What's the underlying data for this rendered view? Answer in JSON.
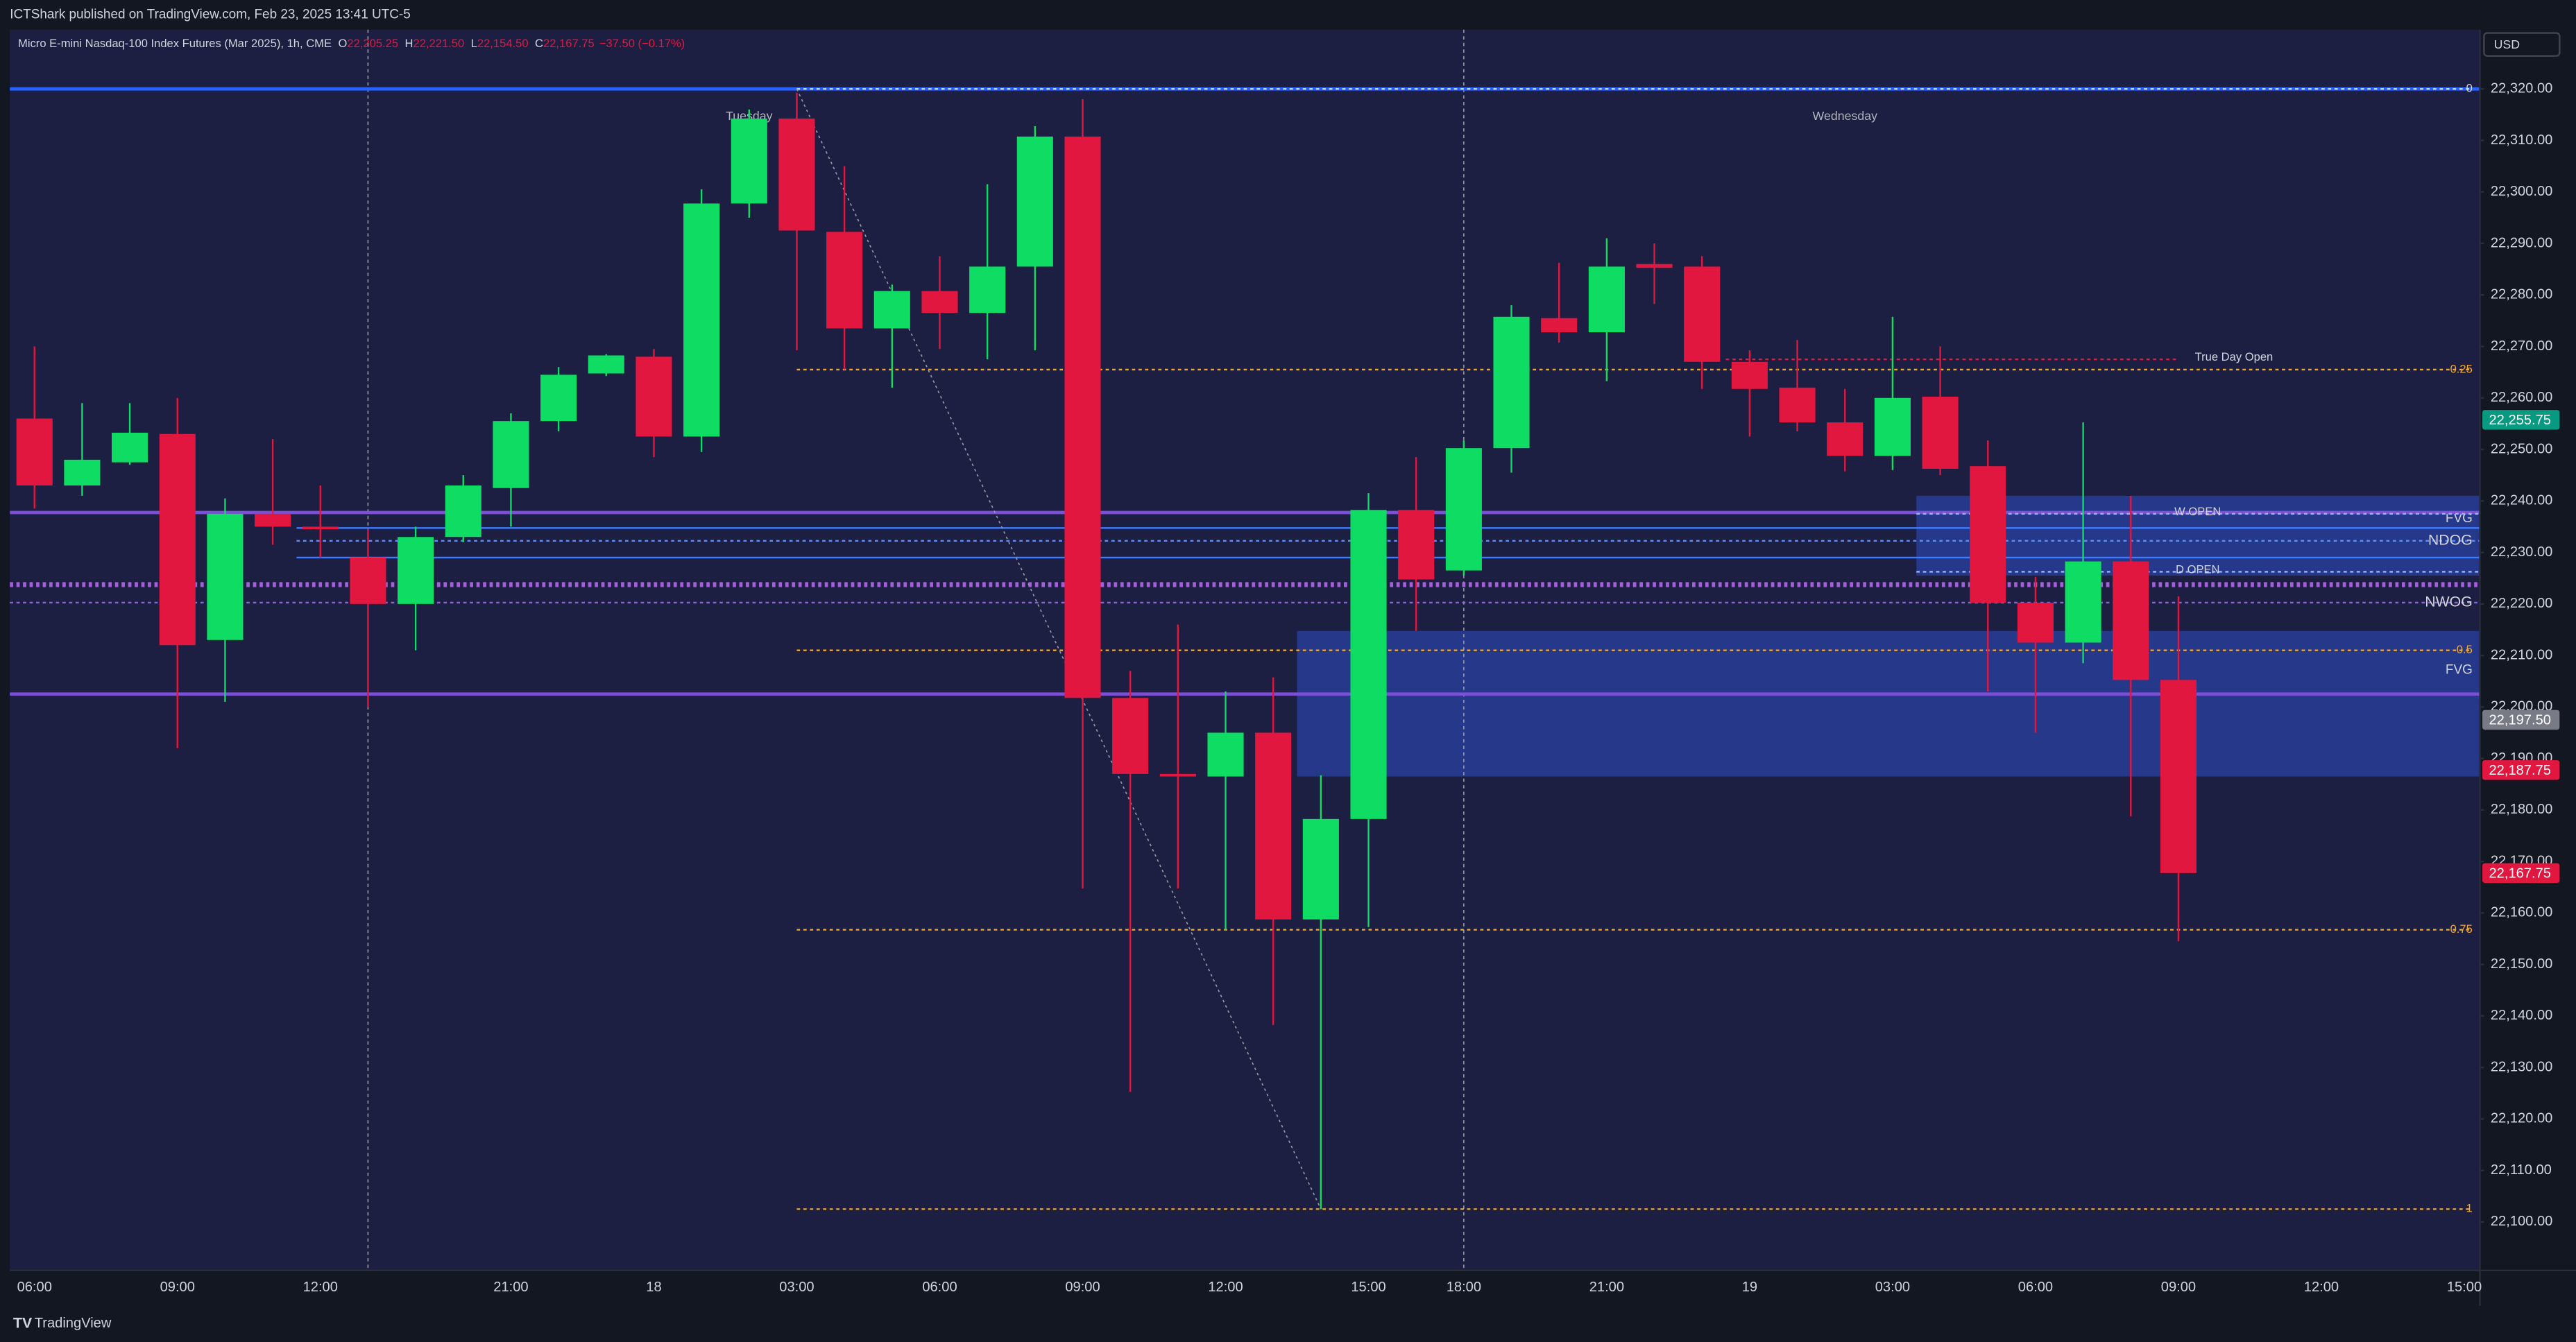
{
  "header": {
    "text": "ICTShark published on TradingView.com, Feb 23, 2025 13:41 UTC-5"
  },
  "chart_data": {
    "type": "candlestick",
    "title": "Micro E-mini Nasdaq-100 Index Futures (Mar 2025), 1h, CME",
    "legend": [
      {
        "key": "O",
        "text": "22,205.25"
      },
      {
        "key": "H",
        "text": "22,221.50"
      },
      {
        "key": "L",
        "text": "22,154.50"
      },
      {
        "key": "C",
        "text": "22,167.75"
      }
    ],
    "change": "−37.50 (−0.17%)",
    "currency": "USD",
    "categories": [
      "06:00",
      null,
      null,
      "09:00",
      null,
      null,
      "12:00",
      null,
      null,
      null,
      "21:00",
      null,
      null,
      "18",
      null,
      null,
      "03:00",
      null,
      null,
      "06:00",
      null,
      null,
      "09:00",
      null,
      null,
      "12:00",
      null,
      null,
      "15:00",
      null,
      "18:00",
      null,
      null,
      "21:00",
      null,
      null,
      "19",
      null,
      null,
      "03:00",
      null,
      null,
      "06:00",
      null,
      null,
      "09:00",
      null,
      null,
      "12:00",
      null,
      null,
      "15:00"
    ],
    "open": [
      22256,
      22243,
      22247.5,
      22253,
      22213,
      22237.5,
      22235,
      22229,
      22220,
      22233,
      22242.5,
      22255.5,
      22264.75,
      22268,
      22252.5,
      22297.75,
      22314.25,
      22292.25,
      22273.5,
      22280.75,
      22276.5,
      22285.5,
      22310.75,
      22201.75,
      22187,
      22186.5,
      22195,
      22158.75,
      22178.25,
      22238.25,
      22226.5,
      22250.25,
      22275.5,
      22272.75,
      22286,
      22285.5,
      22267,
      22262,
      22255.25,
      22248.75,
      22260.25,
      22246.75,
      22220.25,
      22212.5,
      22228.25,
      22205.25,
      null,
      null,
      null,
      null,
      null,
      null
    ],
    "high": [
      22270,
      22259,
      22259,
      22260,
      22240.5,
      22252,
      22243,
      22234.5,
      22235,
      22245,
      22257,
      22266,
      22268.5,
      22269.5,
      22300.5,
      22316,
      22319.25,
      22305,
      22282,
      22287.5,
      22301.5,
      22312.75,
      22318,
      22207,
      22216,
      22203,
      22205.75,
      22186.75,
      22241.5,
      22248.5,
      22251.75,
      22278,
      22286.25,
      22291,
      22290,
      22287.5,
      22269.25,
      22271.25,
      22261.75,
      22275.75,
      22270,
      22251.75,
      22225.25,
      22255.25,
      22241,
      22221.5,
      null,
      null,
      null,
      null,
      null,
      null
    ],
    "low": [
      22238.5,
      22241,
      22247,
      22192,
      22201,
      22231.5,
      22229,
      22200,
      22211,
      22232,
      22235,
      22253.5,
      22264.25,
      22248.5,
      22249.5,
      22295,
      22269.25,
      22265.5,
      22262,
      22269.5,
      22267.5,
      22269.25,
      22164.75,
      22125.25,
      22164.75,
      22156.75,
      22138.25,
      22102.5,
      22157.25,
      22214.75,
      22225.5,
      22245.5,
      22270.75,
      22263.25,
      22278.25,
      22261.75,
      22252.5,
      22253.5,
      22245.75,
      22246,
      22245,
      22203,
      22195,
      22208.5,
      22178.75,
      22154.5,
      null,
      null,
      null,
      null,
      null,
      null
    ],
    "close": [
      22243,
      22248,
      22253.25,
      22212,
      22237.5,
      22235,
      22234.5,
      22220,
      22233,
      22243,
      22255.5,
      22264.5,
      22268.25,
      22252.5,
      22297.75,
      22314.25,
      22292.5,
      22273.5,
      22280.75,
      22276.5,
      22285.5,
      22310.75,
      22201.75,
      22187,
      22186.5,
      22195,
      22158.75,
      22178.25,
      22238.25,
      22224.75,
      22250.25,
      22275.75,
      22272.75,
      22285.5,
      22285.25,
      22267,
      22261.75,
      22255.25,
      22248.75,
      22260,
      22246.25,
      22220.25,
      22212.5,
      22228.25,
      22205.25,
      22167.75,
      null,
      null,
      null,
      null,
      null,
      null
    ],
    "up_color": "#0fdc63",
    "down_color": "#e2173f",
    "ylim": [
      22090.75,
      22331.5
    ],
    "yticks": [
      {
        "value": 22100,
        "label": "22,100.00"
      },
      {
        "value": 22110,
        "label": "22,110.00"
      },
      {
        "value": 22120,
        "label": "22,120.00"
      },
      {
        "value": 22130,
        "label": "22,130.00"
      },
      {
        "value": 22140,
        "label": "22,140.00"
      },
      {
        "value": 22150,
        "label": "22,150.00"
      },
      {
        "value": 22160,
        "label": "22,160.00"
      },
      {
        "value": 22170,
        "label": "22,170.00"
      },
      {
        "value": 22180,
        "label": "22,180.00"
      },
      {
        "value": 22190,
        "label": "22,190.00"
      },
      {
        "value": 22200,
        "label": "22,200.00"
      },
      {
        "value": 22210,
        "label": "22,210.00"
      },
      {
        "value": 22220,
        "label": "22,220.00"
      },
      {
        "value": 22230,
        "label": "22,230.00"
      },
      {
        "value": 22240,
        "label": "22,240.00"
      },
      {
        "value": 22250,
        "label": "22,250.00"
      },
      {
        "value": 22260,
        "label": "22,260.00"
      },
      {
        "value": 22270,
        "label": "22,270.00"
      },
      {
        "value": 22280,
        "label": "22,280.00"
      },
      {
        "value": 22290,
        "label": "22,290.00"
      },
      {
        "value": 22300,
        "label": "22,300.00"
      },
      {
        "value": 22310,
        "label": "22,310.00"
      },
      {
        "value": 22320,
        "label": "22,320.00"
      }
    ],
    "grid": false,
    "price_labels": [
      {
        "value": 22255.75,
        "label": "22,255.75",
        "color": "#089981"
      },
      {
        "value": 22197.5,
        "label": "22,197.50",
        "color": "#787b86"
      },
      {
        "value": 22187.75,
        "label": "22,187.75",
        "color": "#e2173f"
      },
      {
        "value": 22167.75,
        "label": "22,167.75",
        "color": "#e2173f"
      }
    ],
    "zones": [
      {
        "top": 22214.75,
        "bottom": 22186.5,
        "start": 27,
        "label": "FVG",
        "color": "#2d4dc4"
      },
      {
        "top": 22241,
        "bottom": 22225.5,
        "start": 40,
        "label": "FVG",
        "color": "#2d4dc4"
      }
    ],
    "levels": [
      {
        "value": 22320,
        "start": 0,
        "color": "#2962ff",
        "style": "solid",
        "width": 2
      },
      {
        "value": 22237.75,
        "start": 0,
        "color": "#7b4fd6",
        "style": "solid",
        "width": 2
      },
      {
        "value": 22202.5,
        "start": 0,
        "color": "#7b4fd6",
        "style": "solid",
        "width": 2
      },
      {
        "value": 22223.75,
        "start": 0,
        "color": "#a55ddb",
        "style": "dotted",
        "width": 3
      },
      {
        "value": 22220.25,
        "start": 0,
        "color": "#8e63d9",
        "style": "dotted",
        "width": 1,
        "label": "NWOG",
        "label_pos": "end"
      },
      {
        "value": 22234.75,
        "start": 6,
        "color": "#3d7bff",
        "style": "solid",
        "width": 1
      },
      {
        "value": 22229,
        "start": 6,
        "color": "#3d7bff",
        "style": "solid",
        "width": 1
      },
      {
        "value": 22232.25,
        "start": 6,
        "color": "#5f8df0",
        "style": "dotted",
        "width": 1,
        "label": "NDOG",
        "label_pos": "end"
      },
      {
        "value": 22237.5,
        "start": 40,
        "color": "#9fb4ff",
        "style": "dotted",
        "width": 1,
        "label": "W OPEN",
        "label_pos": "center"
      },
      {
        "value": 22226.25,
        "start": 40,
        "color": "#9fb4ff",
        "style": "dotted",
        "width": 1,
        "label": "D OPEN",
        "label_pos": "center"
      },
      {
        "value": 22267.5,
        "start": 36,
        "end": 45,
        "color": "#e2173f",
        "style": "dotted",
        "width": 1,
        "label": "True Day Open",
        "label_pos": "after"
      }
    ],
    "fib": {
      "start": 16,
      "levels": [
        {
          "value": 22320,
          "label": "0",
          "color": "#d1d4dc"
        },
        {
          "value": 22265.5,
          "label": "0.25",
          "color": "#f0a830"
        },
        {
          "value": 22211,
          "label": "0.5",
          "color": "#f0a830"
        },
        {
          "value": 22156.75,
          "label": "0.75",
          "color": "#f0a830"
        },
        {
          "value": 22102.5,
          "label": "1",
          "color": "#f0a830"
        }
      ]
    },
    "trend_line": {
      "x": [
        16,
        27
      ],
      "y": [
        22320,
        22102.5
      ],
      "color": "#9598a1"
    },
    "session_breaks": [
      7,
      30
    ],
    "day_labels": [
      {
        "at": 15,
        "text": "Tuesday"
      },
      {
        "at": 38,
        "text": "Wednesday"
      }
    ]
  },
  "footer": {
    "brand": "TradingView"
  }
}
